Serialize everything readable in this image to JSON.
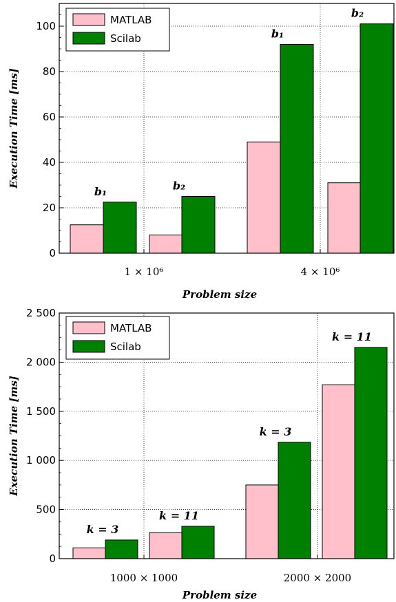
{
  "colors": {
    "matlab": "#ffc0cb",
    "scilab": "#008000"
  },
  "chart_data": [
    {
      "type": "bar",
      "xlabel": "Problem size",
      "ylabel": "Execution Time [ms]",
      "ylim": [
        0,
        110
      ],
      "yticks": [
        0,
        20,
        40,
        60,
        80,
        100
      ],
      "ytick_labels": [
        "0",
        "20",
        "40",
        "60",
        "80",
        "100"
      ],
      "legend": "top-left",
      "grid": true,
      "groups": [
        {
          "label": "1 × 10⁶",
          "bars": [
            {
              "label": "b₁",
              "matlab": 12.5,
              "scilab": 22.5
            },
            {
              "label": "b₂",
              "matlab": 8,
              "scilab": 25
            }
          ]
        },
        {
          "label": "4 × 10⁶",
          "bars": [
            {
              "label": "b₁",
              "matlab": 49,
              "scilab": 92
            },
            {
              "label": "b₂",
              "matlab": 31,
              "scilab": 101
            }
          ]
        }
      ],
      "series": [
        {
          "name": "MATLAB"
        },
        {
          "name": "Scilab"
        }
      ]
    },
    {
      "type": "bar",
      "xlabel": "Problem size",
      "ylabel": "Execution Time [ms]",
      "ylim": [
        0,
        2500
      ],
      "yticks": [
        0,
        500,
        1000,
        1500,
        2000,
        2500
      ],
      "ytick_labels": [
        "0",
        "500",
        "1 000",
        "1 500",
        "2 000",
        "2 500"
      ],
      "legend": "top-left",
      "grid": true,
      "groups": [
        {
          "label": "1000 × 1000",
          "bars": [
            {
              "label": "k = 3",
              "matlab": 110,
              "scilab": 190
            },
            {
              "label": "k = 11",
              "matlab": 265,
              "scilab": 330
            }
          ]
        },
        {
          "label": "2000 × 2000",
          "bars": [
            {
              "label": "k = 3",
              "matlab": 750,
              "scilab": 1185
            },
            {
              "label": "k = 11",
              "matlab": 1770,
              "scilab": 2150
            }
          ]
        }
      ],
      "series": [
        {
          "name": "MATLAB"
        },
        {
          "name": "Scilab"
        }
      ]
    }
  ]
}
